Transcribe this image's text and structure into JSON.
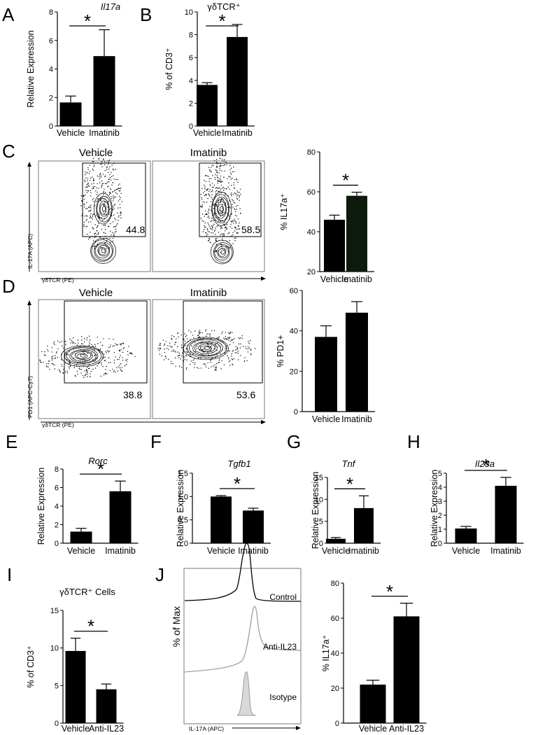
{
  "panel_letters": {
    "A": "A",
    "B": "B",
    "C": "C",
    "D": "D",
    "E": "E",
    "F": "F",
    "G": "G",
    "H": "H",
    "I": "I",
    "J": "J"
  },
  "flow": {
    "C": {
      "left_title": "Vehicle",
      "right_title": "Imatinib",
      "left_value": "44.8",
      "right_value": "58.5",
      "y_axis_label": "IL-17A (APC)",
      "x_axis_label": "γδTCR (PE)"
    },
    "D": {
      "left_title": "Vehicle",
      "right_title": "Imatinib",
      "left_value": "38.8",
      "right_value": "53.6",
      "y_axis_label": "PD1 (APC-Cy7)",
      "x_axis_label": "γδTCR (PE)"
    },
    "J": {
      "y_axis_label": "% of Max",
      "x_axis_label": "IL-17A (APC)",
      "traces": [
        "Control",
        "Anti-IL23",
        "Isotype"
      ]
    }
  },
  "colors": {
    "bar": "#000000",
    "bar_C_imatinib": "#0f1a0f",
    "isotype_fill": "#d9d9d9",
    "anti_il23": "#999999"
  },
  "chart_data": [
    {
      "id": "A",
      "type": "bar",
      "title": "Il17a",
      "ylabel": "Relative Expression",
      "categories": [
        "Vehicle",
        "Imatinib"
      ],
      "values": [
        1.65,
        4.9
      ],
      "errors": [
        0.45,
        1.85
      ],
      "ylim": [
        0,
        8
      ],
      "ticks": [
        "0",
        "2",
        "4",
        "6",
        "8"
      ],
      "significance": "*"
    },
    {
      "id": "B",
      "type": "bar",
      "title": "γδTCR⁺",
      "ylabel": "% of CD3⁺",
      "categories": [
        "Vehicle",
        "Imatinib"
      ],
      "values": [
        3.6,
        7.8
      ],
      "errors": [
        0.2,
        1.1
      ],
      "ylim": [
        0,
        10
      ],
      "ticks": [
        "0",
        "2",
        "4",
        "6",
        "8",
        "10"
      ],
      "significance": "*"
    },
    {
      "id": "C",
      "type": "bar",
      "title": "",
      "ylabel": "% IL17a⁺",
      "categories": [
        "Vehicle",
        "Imatinib"
      ],
      "values": [
        46,
        58
      ],
      "errors": [
        2.3,
        1.8
      ],
      "ylim": [
        20,
        80
      ],
      "ticks": [
        "20",
        "40",
        "60",
        "80"
      ],
      "significance": "*"
    },
    {
      "id": "D",
      "type": "bar",
      "title": "",
      "ylabel": "% PD1+",
      "categories": [
        "Vehicle",
        "Imatinib"
      ],
      "values": [
        37,
        49
      ],
      "errors": [
        5.5,
        5.5
      ],
      "ylim": [
        0,
        60
      ],
      "ticks": [
        "0",
        "20",
        "40",
        "60"
      ],
      "significance": ""
    },
    {
      "id": "E",
      "type": "bar",
      "title": "Rorc",
      "ylabel": "Relative Expression",
      "categories": [
        "Vehicle",
        "Imatinib"
      ],
      "values": [
        1.25,
        5.6
      ],
      "errors": [
        0.35,
        1.1
      ],
      "ylim": [
        0,
        8
      ],
      "ticks": [
        "0",
        "2",
        "4",
        "6",
        "8"
      ],
      "significance": "*"
    },
    {
      "id": "F",
      "type": "bar",
      "title": "Tgfb1",
      "ylabel": "Relative Expression",
      "categories": [
        "Vehicle",
        "Imatinib"
      ],
      "values": [
        1.0,
        0.7
      ],
      "errors": [
        0.02,
        0.05
      ],
      "ylim": [
        0,
        1.5
      ],
      "ticks": [
        "0",
        "0.5",
        "1.0",
        "1.5"
      ],
      "significance": "*"
    },
    {
      "id": "G",
      "type": "bar",
      "title": "Tnf",
      "ylabel": "Relative Expression",
      "categories": [
        "Vehicle",
        "Imatinib"
      ],
      "values": [
        1.0,
        8.0
      ],
      "errors": [
        0.3,
        2.8
      ],
      "ylim": [
        0,
        15
      ],
      "ticks": [
        "0",
        "5",
        "10",
        "15"
      ],
      "significance": "*"
    },
    {
      "id": "H",
      "type": "bar",
      "title": "Il23a",
      "ylabel": "Relative Expression",
      "categories": [
        "Vehicle",
        "Imatinib"
      ],
      "values": [
        1.05,
        4.1
      ],
      "errors": [
        0.15,
        0.6
      ],
      "ylim": [
        0,
        5
      ],
      "ticks": [
        "0",
        "1",
        "2",
        "3",
        "4",
        "5"
      ],
      "significance": "*"
    },
    {
      "id": "I",
      "type": "bar",
      "title": "γδTCR⁺ Cells",
      "ylabel": "% of CD3⁺",
      "categories": [
        "Vehicle",
        "Anti-IL23"
      ],
      "values": [
        9.6,
        4.5
      ],
      "errors": [
        1.7,
        0.7
      ],
      "ylim": [
        0,
        15
      ],
      "ticks": [
        "0",
        "5",
        "10",
        "15"
      ],
      "significance": "*"
    },
    {
      "id": "J",
      "type": "bar",
      "title": "",
      "ylabel": "% IL17a⁺",
      "categories": [
        "Vehicle",
        "Anti-IL23"
      ],
      "values": [
        22,
        61
      ],
      "errors": [
        2.5,
        7.5
      ],
      "ylim": [
        0,
        80
      ],
      "ticks": [
        "0",
        "20",
        "40",
        "60",
        "80"
      ],
      "significance": "*"
    }
  ]
}
